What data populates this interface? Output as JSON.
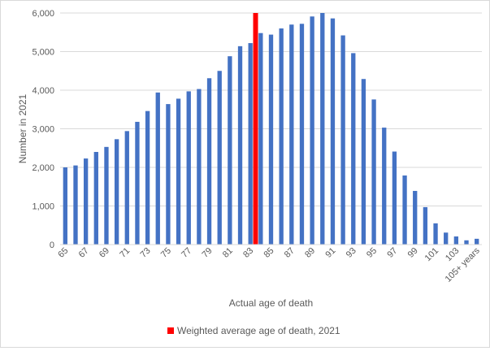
{
  "chart_data": {
    "type": "bar",
    "title": "",
    "xlabel": "Actual age of death",
    "ylabel": "Number in 2021",
    "ylim": [
      0,
      6000
    ],
    "yticks": [
      "0",
      "1,000",
      "2,000",
      "3,000",
      "4,000",
      "5,000",
      "6,000"
    ],
    "ytick_values": [
      0,
      1000,
      2000,
      3000,
      4000,
      5000,
      6000
    ],
    "grid": true,
    "legend_position": "bottom",
    "categories": [
      "65",
      "66",
      "67",
      "68",
      "69",
      "70",
      "71",
      "72",
      "73",
      "74",
      "75",
      "76",
      "77",
      "78",
      "79",
      "80",
      "81",
      "82",
      "83",
      "84",
      "85",
      "86",
      "87",
      "88",
      "89",
      "90",
      "91",
      "92",
      "93",
      "94",
      "95",
      "96",
      "97",
      "98",
      "99",
      "100",
      "101",
      "102",
      "103",
      "104",
      "105+ years"
    ],
    "visible_tick_labels": [
      "65",
      "67",
      "69",
      "71",
      "73",
      "75",
      "77",
      "79",
      "81",
      "83",
      "85",
      "87",
      "89",
      "91",
      "93",
      "95",
      "97",
      "99",
      "101",
      "103",
      "105+ years"
    ],
    "highlight_category": "83",
    "series": [
      {
        "name": "",
        "color": "#4472c4",
        "values": [
          2000,
          2050,
          2230,
          2400,
          2530,
          2730,
          2940,
          3180,
          3460,
          3940,
          3640,
          3780,
          3970,
          4030,
          4310,
          4500,
          4880,
          5140,
          5220,
          5480,
          5440,
          5600,
          5700,
          5720,
          5910,
          6000,
          5860,
          5420,
          4960,
          4290,
          3760,
          3030,
          2410,
          1790,
          1390,
          970,
          550,
          310,
          210,
          110,
          150
        ]
      }
    ],
    "highlight": {
      "label": "Weighted average age of death, 2021",
      "color": "#ff0000",
      "x": 83.5,
      "value": 6000
    }
  }
}
